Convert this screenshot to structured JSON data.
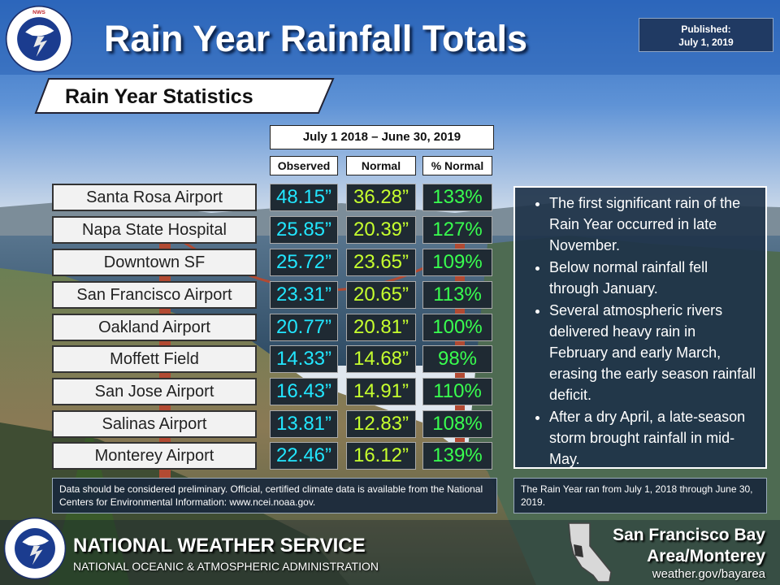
{
  "header": {
    "title": "Rain Year Rainfall Totals",
    "published_label": "Published:",
    "published_date": "July 1, 2019"
  },
  "logo": {
    "text": "NATIONAL WEATHER SERVICE"
  },
  "stats": {
    "banner": "Rain Year Statistics",
    "period": "July 1 2018 – June 30, 2019",
    "columns": [
      "Observed",
      "Normal",
      "% Normal"
    ],
    "rows": [
      {
        "station": "Santa Rosa Airport",
        "observed": "48.15”",
        "normal": "36.28”",
        "pct": "133%"
      },
      {
        "station": "Napa State Hospital",
        "observed": "25.85”",
        "normal": "20.39”",
        "pct": "127%"
      },
      {
        "station": "Downtown SF",
        "observed": "25.72”",
        "normal": "23.65”",
        "pct": "109%"
      },
      {
        "station": "San Francisco Airport",
        "observed": "23.31”",
        "normal": "20.65”",
        "pct": "113%"
      },
      {
        "station": "Oakland Airport",
        "observed": "20.77”",
        "normal": "20.81”",
        "pct": "100%"
      },
      {
        "station": "Moffett Field",
        "observed": "14.33”",
        "normal": "14.68”",
        "pct": "98%"
      },
      {
        "station": "San Jose Airport",
        "observed": "16.43”",
        "normal": "14.91”",
        "pct": "110%"
      },
      {
        "station": "Salinas Airport",
        "observed": "13.81”",
        "normal": "12.83”",
        "pct": "108%"
      },
      {
        "station": "Monterey Airport",
        "observed": "22.46”",
        "normal": "16.12”",
        "pct": "139%"
      }
    ]
  },
  "notes": [
    "The first significant rain of the Rain Year occurred in late November.",
    "Below normal rainfall fell through January.",
    "Several atmospheric rivers delivered heavy rain in February and early March, erasing the early season rainfall deficit.",
    "After a dry April, a late-season storm brought rainfall in mid-May."
  ],
  "disclaimer": "Data should be considered preliminary. Official, certified climate data is available from the National Centers for Environmental Information:  www.ncei.noaa.gov.",
  "rain_year_note": "The Rain Year ran from July 1, 2018 through June 30, 2019.",
  "footer": {
    "agency": "NATIONAL WEATHER SERVICE",
    "parent": "NATIONAL OCEANIC & ATMOSPHERIC ADMINISTRATION",
    "office_line1": "San Francisco Bay",
    "office_line2": "Area/Monterey",
    "url": "weather.gov/bayarea"
  },
  "colors": {
    "observed": "#22e6ff",
    "normal": "#c6ff2e",
    "percent": "#39ff4f"
  }
}
